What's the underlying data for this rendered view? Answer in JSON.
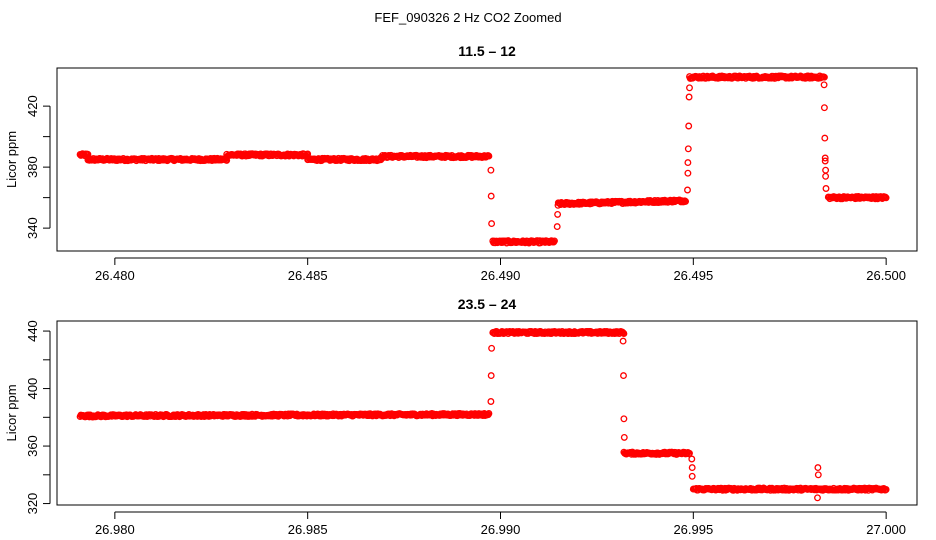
{
  "title": "FEF_090326  2 Hz CO2 Zoomed",
  "chart_data": [
    {
      "type": "scatter",
      "title": "11.5 – 12",
      "xlabel": "",
      "ylabel": "Licor ppm",
      "xlim": [
        26.4785,
        26.5008
      ],
      "ylim": [
        325,
        445
      ],
      "x_ticks": [
        26.48,
        26.485,
        26.49,
        26.495,
        26.5
      ],
      "x_tick_labels": [
        "26.480",
        "26.485",
        "26.490",
        "26.495",
        "26.500"
      ],
      "y_ticks": [
        340,
        360,
        380,
        400,
        420
      ],
      "y_tick_labels": [
        "340",
        "",
        "380",
        "",
        "420"
      ],
      "marker": "open-circle",
      "color": "#ff0000",
      "grid": false,
      "segments": [
        {
          "x_start": 26.4791,
          "x_end": 26.4793,
          "y_start": 388,
          "y_end": 388
        },
        {
          "x_start": 26.4793,
          "x_end": 26.4829,
          "y_start": 385,
          "y_end": 385
        },
        {
          "x_start": 26.4829,
          "x_end": 26.485,
          "y_start": 388,
          "y_end": 388
        },
        {
          "x_start": 26.485,
          "x_end": 26.4869,
          "y_start": 385,
          "y_end": 385
        },
        {
          "x_start": 26.4869,
          "x_end": 26.4897,
          "y_start": 387,
          "y_end": 387
        },
        {
          "x_start": 26.4898,
          "x_end": 26.4914,
          "y_start": 331,
          "y_end": 331
        },
        {
          "x_start": 26.4915,
          "x_end": 26.4948,
          "y_start": 356,
          "y_end": 358
        },
        {
          "x_start": 26.4949,
          "x_end": 26.4984,
          "y_start": 439,
          "y_end": 439
        },
        {
          "x_start": 26.4985,
          "x_end": 26.5,
          "y_start": 360,
          "y_end": 360
        }
      ],
      "transition_points": [
        [
          26.48975,
          378
        ],
        [
          26.48976,
          361
        ],
        [
          26.48977,
          343
        ],
        [
          26.49147,
          341
        ],
        [
          26.49148,
          349
        ],
        [
          26.49149,
          355
        ],
        [
          26.49485,
          365
        ],
        [
          26.49486,
          376
        ],
        [
          26.49486,
          383
        ],
        [
          26.49487,
          392
        ],
        [
          26.49488,
          407
        ],
        [
          26.49489,
          426
        ],
        [
          26.4949,
          432
        ],
        [
          26.49839,
          434
        ],
        [
          26.4984,
          419
        ],
        [
          26.49841,
          399
        ],
        [
          26.49842,
          386
        ],
        [
          26.49842,
          384
        ],
        [
          26.49843,
          378
        ],
        [
          26.49843,
          374
        ],
        [
          26.49844,
          366
        ]
      ]
    },
    {
      "type": "scatter",
      "title": "23.5 – 24",
      "xlabel": "",
      "ylabel": "Licor ppm",
      "xlim": [
        26.9785,
        27.0008
      ],
      "ylim": [
        319,
        447
      ],
      "x_ticks": [
        26.98,
        26.985,
        26.99,
        26.995,
        27.0
      ],
      "x_tick_labels": [
        "26.980",
        "26.985",
        "26.990",
        "26.995",
        "27.000"
      ],
      "y_ticks": [
        320,
        340,
        360,
        380,
        400,
        420,
        440
      ],
      "y_tick_labels": [
        "320",
        "",
        "360",
        "",
        "400",
        "",
        "440"
      ],
      "marker": "open-circle",
      "color": "#ff0000",
      "grid": false,
      "segments": [
        {
          "x_start": 26.9791,
          "x_end": 26.9897,
          "y_start": 381,
          "y_end": 382
        },
        {
          "x_start": 26.9898,
          "x_end": 26.9932,
          "y_start": 439,
          "y_end": 439
        },
        {
          "x_start": 26.9932,
          "x_end": 26.9949,
          "y_start": 355,
          "y_end": 355
        },
        {
          "x_start": 26.995,
          "x_end": 27.0,
          "y_start": 330,
          "y_end": 330
        }
      ],
      "transition_points": [
        [
          26.98975,
          391
        ],
        [
          26.98976,
          409
        ],
        [
          26.98977,
          428
        ],
        [
          26.99318,
          433
        ],
        [
          26.99319,
          409
        ],
        [
          26.9932,
          379
        ],
        [
          26.99321,
          366
        ],
        [
          26.99496,
          351
        ],
        [
          26.99497,
          345
        ],
        [
          26.99497,
          339
        ],
        [
          26.99823,
          345
        ],
        [
          26.99824,
          340
        ],
        [
          26.99822,
          324
        ]
      ]
    }
  ]
}
